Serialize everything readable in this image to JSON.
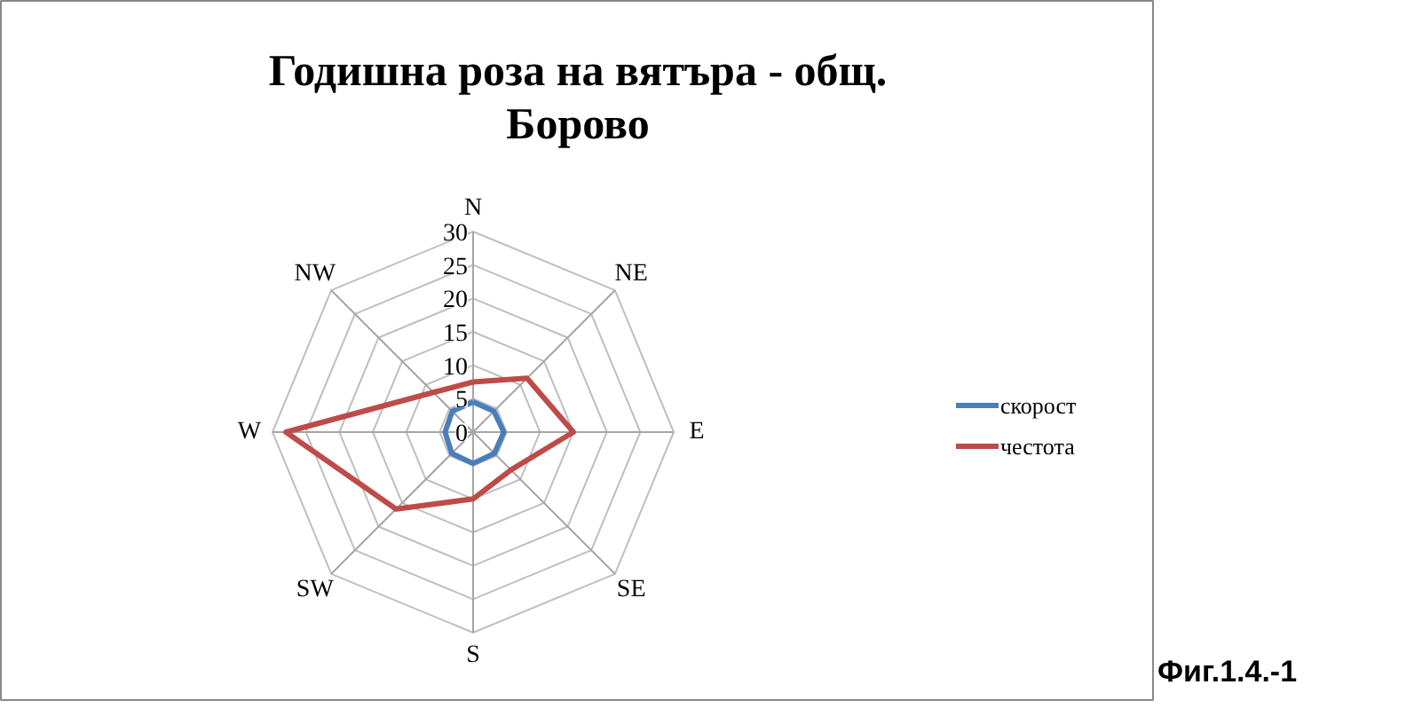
{
  "chart_data": {
    "type": "radar",
    "title": "Годишна роза на вятъра - общ.\nБорово",
    "categories": [
      "N",
      "NE",
      "E",
      "SE",
      "S",
      "SW",
      "W",
      "NW"
    ],
    "series": [
      {
        "name": "скорост",
        "color": "#4a7ebb",
        "values": [
          4.5,
          4.4,
          4.6,
          4.5,
          4.7,
          4.5,
          4.2,
          4.4
        ]
      },
      {
        "name": "честота",
        "color": "#be4b48",
        "values": [
          7.5,
          11.4,
          15,
          8,
          10,
          16.3,
          28,
          8.4
        ]
      }
    ],
    "ylim": [
      0,
      30
    ],
    "yticks": [
      0,
      5,
      10,
      15,
      20,
      25,
      30
    ],
    "grid": true,
    "legend": "right",
    "annotations": [
      "Фиг.1.4.-1"
    ]
  }
}
